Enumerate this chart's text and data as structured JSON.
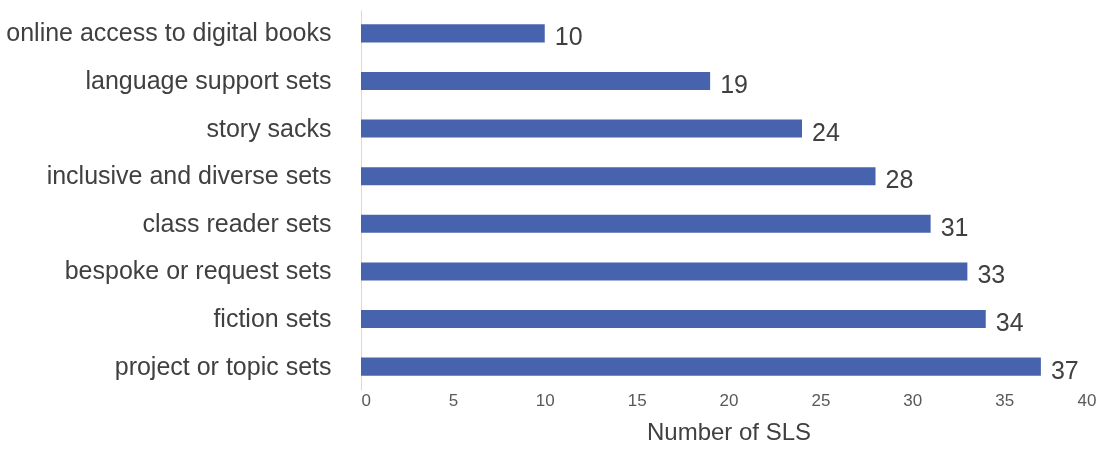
{
  "chart_data": {
    "type": "bar",
    "orientation": "horizontal",
    "categories": [
      "online access to digital books",
      "language support sets",
      "story sacks",
      "inclusive and diverse sets",
      "class reader sets",
      "bespoke or request sets",
      "fiction sets",
      "project or topic sets"
    ],
    "values": [
      10,
      19,
      24,
      28,
      31,
      33,
      34,
      37
    ],
    "color": "#4763ae",
    "xlabel": "Number of SLS",
    "xlim": [
      0,
      40
    ],
    "xticks": [
      0,
      5,
      10,
      15,
      20,
      25,
      30,
      35,
      40
    ],
    "grid": false,
    "data_labels": true
  }
}
